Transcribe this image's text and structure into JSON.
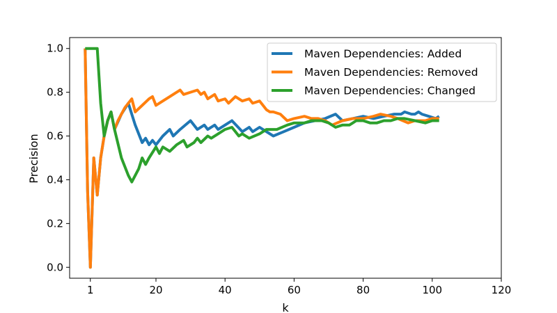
{
  "chart_data": {
    "type": "line",
    "title": "",
    "xlabel": "k",
    "ylabel": "Precision",
    "xlim": [
      -5,
      120
    ],
    "ylim": [
      -0.05,
      1.05
    ],
    "xticks": [
      1,
      20,
      40,
      60,
      80,
      100,
      120
    ],
    "yticks": [
      0.0,
      0.2,
      0.4,
      0.6,
      0.8,
      1.0
    ],
    "grid": false,
    "legend_position": "top-right",
    "series": [
      {
        "name": "Maven Dependencies: Added",
        "color": "#1f77b4",
        "points": [
          [
            -0.5,
            1.0
          ],
          [
            0.2,
            0.35
          ],
          [
            1,
            0.0
          ],
          [
            2,
            0.5
          ],
          [
            3,
            0.33
          ],
          [
            4,
            0.5
          ],
          [
            5,
            0.6
          ],
          [
            6,
            0.67
          ],
          [
            7,
            0.71
          ],
          [
            8,
            0.63
          ],
          [
            10,
            0.7
          ],
          [
            12,
            0.75
          ],
          [
            14,
            0.65
          ],
          [
            16,
            0.57
          ],
          [
            17,
            0.59
          ],
          [
            18,
            0.56
          ],
          [
            19,
            0.58
          ],
          [
            20,
            0.56
          ],
          [
            22,
            0.6
          ],
          [
            24,
            0.63
          ],
          [
            25,
            0.6
          ],
          [
            27,
            0.63
          ],
          [
            30,
            0.67
          ],
          [
            32,
            0.63
          ],
          [
            34,
            0.65
          ],
          [
            35,
            0.63
          ],
          [
            37,
            0.65
          ],
          [
            38,
            0.63
          ],
          [
            40,
            0.65
          ],
          [
            42,
            0.67
          ],
          [
            45,
            0.62
          ],
          [
            47,
            0.64
          ],
          [
            48,
            0.62
          ],
          [
            50,
            0.64
          ],
          [
            52,
            0.62
          ],
          [
            54,
            0.6
          ],
          [
            57,
            0.62
          ],
          [
            60,
            0.64
          ],
          [
            63,
            0.66
          ],
          [
            66,
            0.67
          ],
          [
            69,
            0.68
          ],
          [
            72,
            0.7
          ],
          [
            74,
            0.67
          ],
          [
            77,
            0.68
          ],
          [
            80,
            0.69
          ],
          [
            83,
            0.68
          ],
          [
            86,
            0.69
          ],
          [
            89,
            0.7
          ],
          [
            91,
            0.7
          ],
          [
            92,
            0.71
          ],
          [
            94,
            0.7
          ],
          [
            95,
            0.7
          ],
          [
            96,
            0.71
          ],
          [
            97,
            0.7
          ],
          [
            99,
            0.69
          ],
          [
            101,
            0.68
          ],
          [
            102,
            0.69
          ]
        ]
      },
      {
        "name": "Maven Dependencies: Removed",
        "color": "#ff7f0e",
        "points": [
          [
            -0.5,
            1.0
          ],
          [
            0.2,
            0.35
          ],
          [
            1,
            0.0
          ],
          [
            2,
            0.5
          ],
          [
            3,
            0.33
          ],
          [
            4,
            0.5
          ],
          [
            5,
            0.6
          ],
          [
            6,
            0.67
          ],
          [
            7,
            0.71
          ],
          [
            8,
            0.63
          ],
          [
            9,
            0.67
          ],
          [
            11,
            0.73
          ],
          [
            13,
            0.77
          ],
          [
            14,
            0.71
          ],
          [
            16,
            0.74
          ],
          [
            18,
            0.77
          ],
          [
            19,
            0.78
          ],
          [
            20,
            0.74
          ],
          [
            22,
            0.76
          ],
          [
            24,
            0.78
          ],
          [
            26,
            0.8
          ],
          [
            27,
            0.81
          ],
          [
            28,
            0.79
          ],
          [
            30,
            0.8
          ],
          [
            32,
            0.81
          ],
          [
            33,
            0.79
          ],
          [
            34,
            0.8
          ],
          [
            35,
            0.77
          ],
          [
            37,
            0.79
          ],
          [
            38,
            0.76
          ],
          [
            40,
            0.77
          ],
          [
            41,
            0.75
          ],
          [
            43,
            0.78
          ],
          [
            45,
            0.76
          ],
          [
            47,
            0.77
          ],
          [
            48,
            0.75
          ],
          [
            50,
            0.76
          ],
          [
            52,
            0.72
          ],
          [
            53,
            0.71
          ],
          [
            54,
            0.71
          ],
          [
            56,
            0.7
          ],
          [
            58,
            0.67
          ],
          [
            60,
            0.68
          ],
          [
            63,
            0.69
          ],
          [
            65,
            0.68
          ],
          [
            67,
            0.68
          ],
          [
            69,
            0.67
          ],
          [
            71,
            0.65
          ],
          [
            74,
            0.67
          ],
          [
            77,
            0.68
          ],
          [
            80,
            0.68
          ],
          [
            83,
            0.69
          ],
          [
            85,
            0.7
          ],
          [
            88,
            0.69
          ],
          [
            90,
            0.68
          ],
          [
            93,
            0.66
          ],
          [
            95,
            0.67
          ],
          [
            98,
            0.67
          ],
          [
            100,
            0.68
          ],
          [
            102,
            0.68
          ]
        ]
      },
      {
        "name": "Maven Dependencies: Changed",
        "color": "#2ca02c",
        "points": [
          [
            -0.5,
            1.0
          ],
          [
            1,
            1.0
          ],
          [
            2,
            1.0
          ],
          [
            3,
            1.0
          ],
          [
            4,
            0.75
          ],
          [
            5,
            0.6
          ],
          [
            6,
            0.67
          ],
          [
            7,
            0.71
          ],
          [
            8,
            0.63
          ],
          [
            10,
            0.5
          ],
          [
            12,
            0.42
          ],
          [
            13,
            0.39
          ],
          [
            15,
            0.45
          ],
          [
            16,
            0.5
          ],
          [
            17,
            0.47
          ],
          [
            18,
            0.5
          ],
          [
            20,
            0.55
          ],
          [
            21,
            0.52
          ],
          [
            22,
            0.55
          ],
          [
            23,
            0.54
          ],
          [
            24,
            0.53
          ],
          [
            26,
            0.56
          ],
          [
            28,
            0.58
          ],
          [
            29,
            0.55
          ],
          [
            31,
            0.57
          ],
          [
            32,
            0.59
          ],
          [
            33,
            0.57
          ],
          [
            35,
            0.6
          ],
          [
            36,
            0.59
          ],
          [
            38,
            0.61
          ],
          [
            40,
            0.63
          ],
          [
            42,
            0.64
          ],
          [
            43,
            0.62
          ],
          [
            44,
            0.6
          ],
          [
            45,
            0.61
          ],
          [
            47,
            0.59
          ],
          [
            50,
            0.61
          ],
          [
            52,
            0.63
          ],
          [
            55,
            0.63
          ],
          [
            58,
            0.65
          ],
          [
            60,
            0.66
          ],
          [
            63,
            0.66
          ],
          [
            65,
            0.67
          ],
          [
            68,
            0.67
          ],
          [
            70,
            0.66
          ],
          [
            72,
            0.64
          ],
          [
            74,
            0.65
          ],
          [
            76,
            0.65
          ],
          [
            78,
            0.67
          ],
          [
            80,
            0.67
          ],
          [
            82,
            0.66
          ],
          [
            84,
            0.66
          ],
          [
            86,
            0.67
          ],
          [
            88,
            0.67
          ],
          [
            90,
            0.68
          ],
          [
            92,
            0.68
          ],
          [
            95,
            0.67
          ],
          [
            98,
            0.66
          ],
          [
            100,
            0.67
          ],
          [
            102,
            0.67
          ]
        ]
      }
    ]
  }
}
